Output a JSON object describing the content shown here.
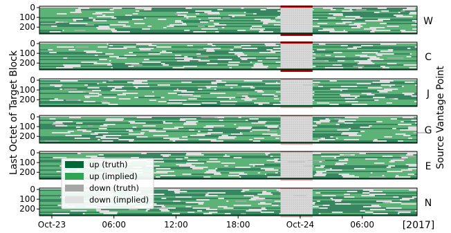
{
  "chart_data": {
    "type": "heatmap",
    "title": "",
    "xlabel": "",
    "ylabel": "Last Octet of Target Block",
    "right_label": "Source Vantage Point",
    "year_label": "[2017]",
    "x_ticks": [
      "Oct-23",
      "06:00",
      "12:00",
      "18:00",
      "Oct-24",
      "06:00"
    ],
    "x_tick_hours": [
      0,
      6,
      12,
      18,
      24,
      30
    ],
    "x_range_hours": [
      -1.2,
      35.3
    ],
    "y_ticks": [
      "0",
      "100",
      "200"
    ],
    "y_tick_values": [
      0,
      100,
      200
    ],
    "y_range": [
      0,
      255
    ],
    "panels": [
      {
        "name": "W",
        "outage_hours": [
          22.1,
          25.2
        ]
      },
      {
        "name": "C",
        "outage_hours": [
          22.1,
          25.2
        ]
      },
      {
        "name": "J",
        "outage_hours": [
          22.1,
          25.2
        ]
      },
      {
        "name": "G",
        "outage_hours": [
          22.1,
          25.2
        ]
      },
      {
        "name": "E",
        "outage_hours": [
          22.1,
          25.2
        ]
      },
      {
        "name": "N",
        "outage_hours": [
          22.1,
          25.2
        ]
      }
    ],
    "highlight": {
      "hours": [
        22.1,
        25.2
      ],
      "color": "#c00000"
    },
    "legend": {
      "position": "lower-left over panel E",
      "entries": [
        {
          "label": "up (truth)",
          "color": "#006837"
        },
        {
          "label": "up (implied)",
          "color": "#31a354"
        },
        {
          "label": "down (truth)",
          "color": "#a6a6a6"
        },
        {
          "label": "down (implied)",
          "color": "#e0e0e0"
        }
      ]
    },
    "colors": {
      "up_truth": "#006837",
      "up_implied": "#31a354",
      "down_truth": "#a6a6a6",
      "down_implied": "#e0e0e0"
    }
  }
}
